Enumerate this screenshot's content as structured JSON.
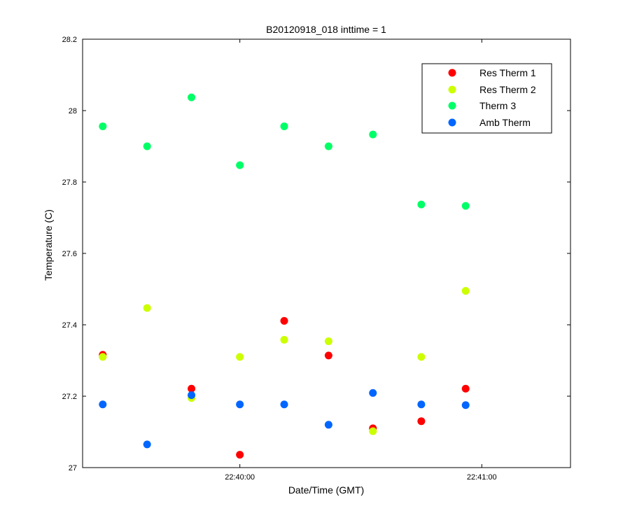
{
  "chart_data": {
    "type": "scatter",
    "title": "B20120918_018 inttime = 1",
    "xlabel": "Date/Time (GMT)",
    "ylabel": "Temperature (C)",
    "xlim": [
      "22:39:21",
      "22:41:22"
    ],
    "ylim": [
      27,
      28.2
    ],
    "x_ticks": [
      "22:40:00",
      "22:41:00"
    ],
    "y_ticks": [
      "27",
      "27.2",
      "27.4",
      "27.6",
      "27.8",
      "28",
      "28.2"
    ],
    "grid": false,
    "legend_position": "top-right",
    "x": [
      "22:39:26",
      "22:39:37",
      "22:39:48",
      "22:40:00",
      "22:40:11",
      "22:40:22",
      "22:40:33",
      "22:40:45",
      "22:40:56"
    ],
    "series": [
      {
        "name": "Res Therm 1",
        "color": "#ff0000",
        "values": [
          27.316,
          null,
          27.221,
          27.036,
          27.411,
          27.314,
          27.11,
          27.13,
          27.221
        ]
      },
      {
        "name": "Res Therm 2",
        "color": "#ccff00",
        "values": [
          27.31,
          27.447,
          27.195,
          27.31,
          27.358,
          27.354,
          27.102,
          27.31,
          27.495
        ]
      },
      {
        "name": "Therm 3",
        "color": "#00ff66",
        "values": [
          27.956,
          27.9,
          28.037,
          27.847,
          27.956,
          27.9,
          27.933,
          27.737,
          27.733
        ]
      },
      {
        "name": "Amb Therm",
        "color": "#0066ff",
        "values": [
          27.177,
          27.065,
          27.203,
          27.177,
          27.177,
          27.12,
          27.209,
          27.177,
          27.175
        ]
      }
    ]
  }
}
